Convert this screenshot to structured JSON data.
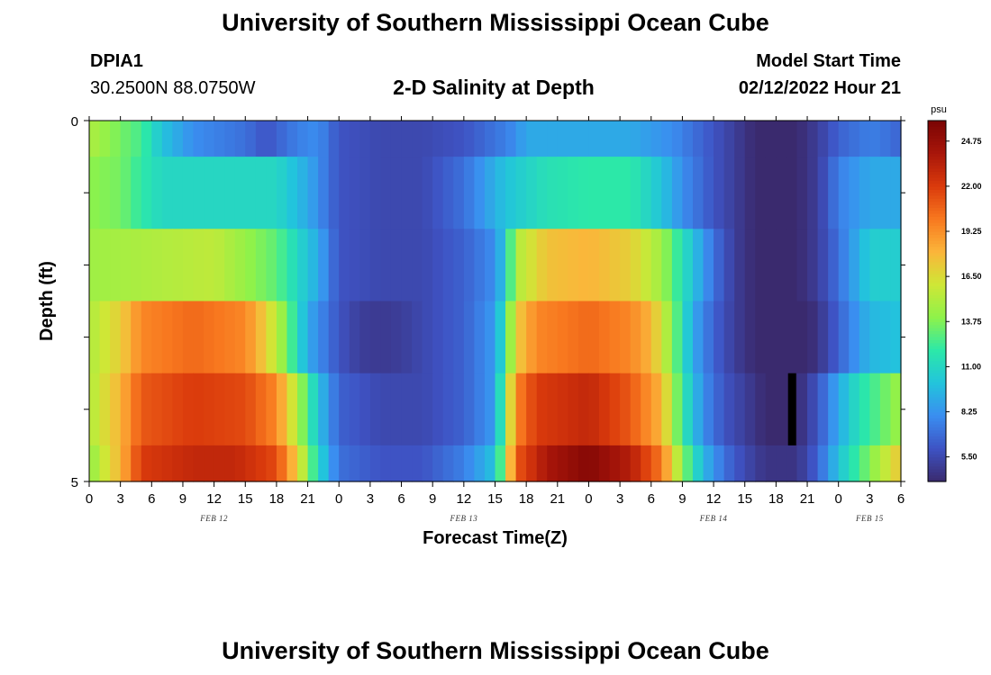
{
  "header": {
    "title": "University of Southern Mississippi Ocean Cube",
    "station": "DPIA1",
    "coordinates": "30.2500N  88.0750W",
    "subtitle": "2-D Salinity at Depth",
    "model_start_label": "Model Start Time",
    "model_start_value": "02/12/2022 Hour 21"
  },
  "footer": {
    "title": "University of Southern Mississippi Ocean Cube"
  },
  "colors": {
    "background": "#ffffff",
    "colormap": [
      "#3a2a6e",
      "#3e53c4",
      "#3a8ef0",
      "#22c4dc",
      "#2ce8a8",
      "#8ef24a",
      "#cfe736",
      "#fbb53a",
      "#f8781f",
      "#da3a0c",
      "#a8160a",
      "#7a0404"
    ]
  },
  "chart_data": {
    "type": "heatmap",
    "title": "2-D Salinity at Depth",
    "xlabel": "Forecast Time(Z)",
    "ylabel": "Depth (ft)",
    "x_ticks": [
      "0",
      "3",
      "6",
      "9",
      "12",
      "15",
      "18",
      "21",
      "0",
      "3",
      "6",
      "9",
      "12",
      "15",
      "18",
      "21",
      "0",
      "3",
      "6",
      "9",
      "12",
      "15",
      "18",
      "21",
      "0",
      "3",
      "6"
    ],
    "x_hours_range": [
      0,
      78
    ],
    "x_dates": [
      {
        "label": "FEB 12",
        "hour": 12
      },
      {
        "label": "FEB 13",
        "hour": 36
      },
      {
        "label": "FEB 14",
        "hour": 60
      },
      {
        "label": "FEB 15",
        "hour": 75
      }
    ],
    "y_tick_labels": [
      {
        "depth": 0,
        "label": "0"
      },
      {
        "depth": 5,
        "label": "5"
      }
    ],
    "ylim": [
      0,
      5
    ],
    "colorbar": {
      "unit": "psu",
      "range": [
        4.0,
        26.0
      ],
      "tick_labels": [
        "24.75",
        "22.00",
        "19.25",
        "16.50",
        "13.75",
        "11.00",
        "8.25",
        "5.50"
      ]
    },
    "layers": [
      {
        "depth_range": [
          0.0,
          0.5
        ],
        "keyframes": [
          [
            0,
            15
          ],
          [
            2,
            14
          ],
          [
            5,
            12.5
          ],
          [
            7,
            10
          ],
          [
            10,
            8
          ],
          [
            15,
            7
          ],
          [
            17,
            6
          ],
          [
            20,
            7.5
          ],
          [
            22,
            8
          ],
          [
            24,
            6
          ],
          [
            28,
            5.5
          ],
          [
            32,
            5.5
          ],
          [
            36,
            6
          ],
          [
            40,
            7.5
          ],
          [
            41,
            8
          ],
          [
            42,
            9
          ],
          [
            44,
            9
          ],
          [
            50,
            9
          ],
          [
            52,
            9
          ],
          [
            56,
            8
          ],
          [
            60,
            6
          ],
          [
            62,
            5
          ],
          [
            64,
            4
          ],
          [
            68,
            4
          ],
          [
            70,
            5
          ],
          [
            72,
            6.5
          ],
          [
            75,
            7.5
          ],
          [
            77,
            7
          ],
          [
            78,
            6.5
          ]
        ]
      },
      {
        "depth_range": [
          0.5,
          1.5
        ],
        "keyframes": [
          [
            0,
            14
          ],
          [
            3,
            13.5
          ],
          [
            5,
            12
          ],
          [
            7,
            11
          ],
          [
            12,
            11
          ],
          [
            18,
            11
          ],
          [
            21,
            9
          ],
          [
            24,
            6
          ],
          [
            28,
            5.5
          ],
          [
            32,
            5.5
          ],
          [
            36,
            7
          ],
          [
            40,
            10
          ],
          [
            44,
            11.5
          ],
          [
            48,
            12
          ],
          [
            52,
            12
          ],
          [
            55,
            10
          ],
          [
            57,
            8
          ],
          [
            60,
            6
          ],
          [
            62,
            5
          ],
          [
            64,
            4
          ],
          [
            68,
            4
          ],
          [
            70,
            5
          ],
          [
            72,
            7.5
          ],
          [
            75,
            9
          ],
          [
            78,
            9
          ]
        ]
      },
      {
        "depth_range": [
          1.5,
          2.5
        ],
        "keyframes": [
          [
            0,
            14.5
          ],
          [
            6,
            15
          ],
          [
            12,
            15.5
          ],
          [
            18,
            13
          ],
          [
            20,
            11
          ],
          [
            22,
            9
          ],
          [
            24,
            6
          ],
          [
            28,
            5.5
          ],
          [
            32,
            5.5
          ],
          [
            36,
            6.5
          ],
          [
            39,
            8
          ],
          [
            40,
            10.5
          ],
          [
            41,
            15
          ],
          [
            44,
            17.5
          ],
          [
            48,
            18
          ],
          [
            52,
            17
          ],
          [
            55,
            14.5
          ],
          [
            57,
            11.5
          ],
          [
            60,
            7
          ],
          [
            62,
            5
          ],
          [
            64,
            4
          ],
          [
            68,
            4
          ],
          [
            70,
            5
          ],
          [
            72,
            7
          ],
          [
            75,
            10.5
          ],
          [
            78,
            10.5
          ]
        ]
      },
      {
        "depth_range": [
          2.5,
          3.5
        ],
        "keyframes": [
          [
            0,
            15
          ],
          [
            3,
            17
          ],
          [
            5,
            19.5
          ],
          [
            10,
            20.5
          ],
          [
            15,
            19.5
          ],
          [
            17,
            17
          ],
          [
            19,
            13.5
          ],
          [
            21,
            9
          ],
          [
            24,
            6
          ],
          [
            26,
            5
          ],
          [
            28,
            4.8
          ],
          [
            30,
            5
          ],
          [
            32,
            5.5
          ],
          [
            36,
            6.5
          ],
          [
            39,
            8.5
          ],
          [
            40,
            12
          ],
          [
            41,
            17
          ],
          [
            43,
            19.5
          ],
          [
            48,
            20.5
          ],
          [
            52,
            19.5
          ],
          [
            54,
            18
          ],
          [
            56,
            14
          ],
          [
            58,
            9
          ],
          [
            60,
            6.5
          ],
          [
            62,
            5
          ],
          [
            64,
            4
          ],
          [
            68,
            3.5
          ],
          [
            70,
            4.5
          ],
          [
            72,
            6.5
          ],
          [
            75,
            9.5
          ],
          [
            78,
            10
          ]
        ]
      },
      {
        "depth_range": [
          3.5,
          4.5
        ],
        "keyframes": [
          [
            0,
            15
          ],
          [
            3,
            18
          ],
          [
            5,
            21
          ],
          [
            10,
            22
          ],
          [
            15,
            21.5
          ],
          [
            18,
            19.5
          ],
          [
            20,
            15
          ],
          [
            22,
            10
          ],
          [
            24,
            6.5
          ],
          [
            28,
            5.5
          ],
          [
            32,
            5.5
          ],
          [
            36,
            6.5
          ],
          [
            39,
            8.5
          ],
          [
            40,
            14
          ],
          [
            41,
            19.5
          ],
          [
            43,
            22
          ],
          [
            48,
            23
          ],
          [
            52,
            21
          ],
          [
            55,
            18
          ],
          [
            57,
            12
          ],
          [
            59,
            8
          ],
          [
            61,
            6
          ],
          [
            63,
            5
          ],
          [
            65,
            4
          ],
          [
            68,
            4
          ],
          [
            70,
            6
          ],
          [
            72,
            9
          ],
          [
            74,
            11.5
          ],
          [
            76,
            13
          ],
          [
            78,
            14.5
          ]
        ]
      },
      {
        "depth_range": [
          4.5,
          5.0
        ],
        "keyframes": [
          [
            0,
            14
          ],
          [
            3,
            18
          ],
          [
            5,
            22
          ],
          [
            10,
            23
          ],
          [
            14,
            23
          ],
          [
            18,
            21.5
          ],
          [
            20,
            17
          ],
          [
            22,
            11
          ],
          [
            24,
            7
          ],
          [
            28,
            6
          ],
          [
            32,
            6
          ],
          [
            36,
            7.5
          ],
          [
            39,
            10
          ],
          [
            40,
            15
          ],
          [
            41,
            21
          ],
          [
            44,
            24
          ],
          [
            48,
            25.5
          ],
          [
            52,
            23.5
          ],
          [
            55,
            20
          ],
          [
            57,
            14
          ],
          [
            59,
            9.5
          ],
          [
            61,
            7
          ],
          [
            63,
            5.5
          ],
          [
            65,
            4.5
          ],
          [
            68,
            4.5
          ],
          [
            70,
            6.5
          ],
          [
            72,
            10
          ],
          [
            74,
            12.5
          ],
          [
            76,
            15
          ],
          [
            78,
            17.5
          ]
        ]
      }
    ],
    "black_column": {
      "hour": 67.5,
      "depth_range": [
        3.5,
        4.5
      ]
    }
  }
}
